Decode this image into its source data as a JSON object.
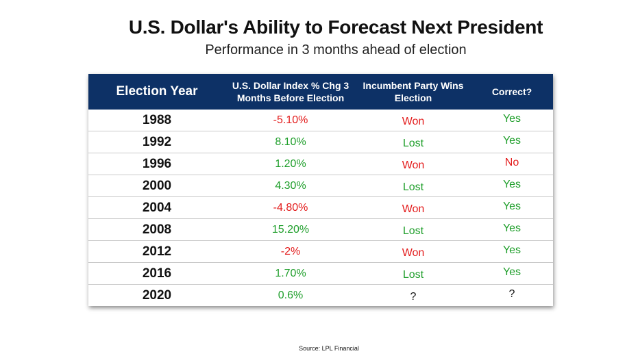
{
  "title": "U.S. Dollar's Ability to Forecast Next President",
  "subtitle": "Performance in 3 months ahead of election",
  "source": "Source: LPL Financial",
  "colors": {
    "header_bg": "#0d3166",
    "red": "#e31b1b",
    "green": "#1e9e2a",
    "black": "#111111"
  },
  "chart_data": {
    "type": "table",
    "columns": [
      "Election Year",
      "U.S. Dollar Index % Chg 3 Months Before Election",
      "Incumbent Party Wins Election",
      "Correct?"
    ],
    "rows": [
      {
        "year": "1988",
        "change": "-5.10%",
        "change_color": "red",
        "wins": "Won",
        "wins_color": "red",
        "correct": "Yes",
        "correct_color": "green"
      },
      {
        "year": "1992",
        "change": "8.10%",
        "change_color": "green",
        "wins": "Lost",
        "wins_color": "green",
        "correct": "Yes",
        "correct_color": "green"
      },
      {
        "year": "1996",
        "change": "1.20%",
        "change_color": "green",
        "wins": "Won",
        "wins_color": "red",
        "correct": "No",
        "correct_color": "red"
      },
      {
        "year": "2000",
        "change": "4.30%",
        "change_color": "green",
        "wins": "Lost",
        "wins_color": "green",
        "correct": "Yes",
        "correct_color": "green"
      },
      {
        "year": "2004",
        "change": "-4.80%",
        "change_color": "red",
        "wins": "Won",
        "wins_color": "red",
        "correct": "Yes",
        "correct_color": "green"
      },
      {
        "year": "2008",
        "change": "15.20%",
        "change_color": "green",
        "wins": "Lost",
        "wins_color": "green",
        "correct": "Yes",
        "correct_color": "green"
      },
      {
        "year": "2012",
        "change": "-2%",
        "change_color": "red",
        "wins": "Won",
        "wins_color": "red",
        "correct": "Yes",
        "correct_color": "green"
      },
      {
        "year": "2016",
        "change": "1.70%",
        "change_color": "green",
        "wins": "Lost",
        "wins_color": "green",
        "correct": "Yes",
        "correct_color": "green"
      },
      {
        "year": "2020",
        "change": "0.6%",
        "change_color": "green",
        "wins": "?",
        "wins_color": "black",
        "correct": "?",
        "correct_color": "black"
      }
    ]
  }
}
